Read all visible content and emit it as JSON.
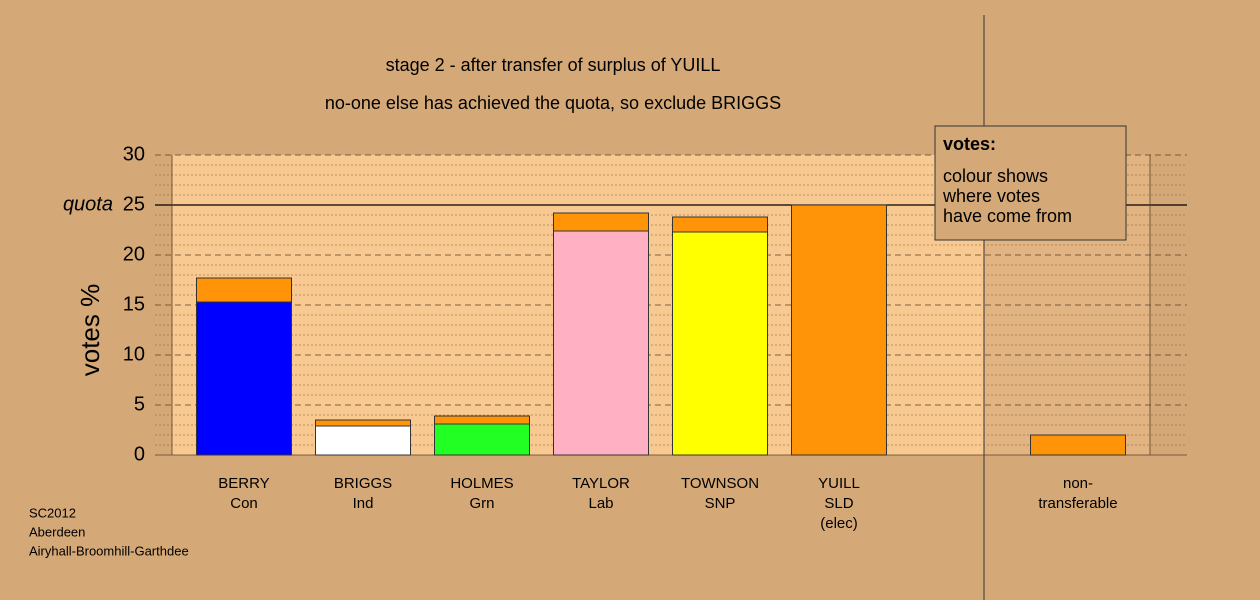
{
  "chart_data": {
    "type": "stacked-bar",
    "title": "stage 2 - after transfer of surplus of YUILL",
    "subtitle": "no-one else has achieved the quota, so exclude BRIGGS",
    "y_label": "votes %",
    "quota_label": "quota",
    "quota": 25,
    "categories": [
      [
        "BERRY",
        "Con"
      ],
      [
        "BRIGGS",
        "Ind"
      ],
      [
        "HOLMES",
        "Grn"
      ],
      [
        "TAYLOR",
        "Lab"
      ],
      [
        "TOWNSON",
        "SNP"
      ],
      [
        "YUILL",
        "SLD",
        "(elec)"
      ],
      [
        "non-",
        "transferable"
      ]
    ],
    "series": [
      {
        "colors": [
          "#0000ff",
          "#ffffff",
          "#22ff22",
          "#ffb0c2",
          "#ffff00",
          "#ff9408",
          "#ff9408"
        ],
        "values": [
          15.3,
          2.9,
          3.1,
          22.4,
          22.3,
          25,
          2.0
        ]
      },
      {
        "color": "#ff9408",
        "values": [
          2.4,
          0.6,
          0.8,
          1.8,
          1.5,
          null,
          null
        ]
      }
    ],
    "ylim": [
      0,
      30
    ],
    "yticks": [
      0,
      5,
      10,
      15,
      20,
      25,
      30
    ],
    "minor_yticks": [
      1,
      2,
      3,
      4,
      6,
      7,
      8,
      9,
      11,
      12,
      13,
      14,
      16,
      17,
      18,
      19,
      21,
      22,
      23,
      24,
      26,
      27,
      28,
      29
    ],
    "legend_title": "votes:",
    "legend_lines": [
      "colour shows",
      "where votes",
      "have come from"
    ],
    "footer": [
      "SC2012",
      "Aberdeen",
      "Airyhall-Broomhill-Garthdee"
    ]
  }
}
